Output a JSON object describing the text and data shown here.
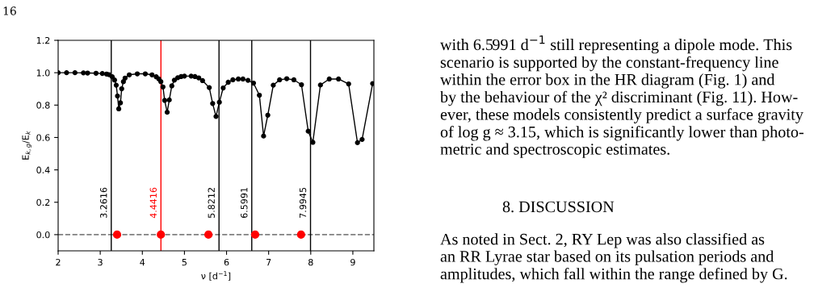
{
  "chart_data": {
    "type": "line",
    "xlabel": "ν [d$^{−1}$]",
    "ylabel": "E$_{k,g}$/E$_{k}$",
    "xlim": [
      2,
      9.5
    ],
    "xticks": [
      2,
      3,
      4,
      5,
      6,
      7,
      8,
      9
    ],
    "ylim": [
      -0.1,
      1.2
    ],
    "yticks": [
      {
        "value": 0,
        "label": "0.0"
      },
      0.2,
      0.4,
      0.6,
      0.8,
      {
        "value": 1,
        "label": "1.0"
      },
      1.2
    ],
    "grid": false,
    "legend": false,
    "series": [
      {
        "color": "#000000",
        "marker": "circle",
        "line_style": "solid",
        "x": [
          2.0,
          2.2,
          2.4,
          2.6,
          2.7,
          2.9,
          3.05,
          3.15,
          3.21,
          3.285,
          3.34,
          3.38,
          3.41,
          3.44,
          3.48,
          3.51,
          3.55,
          3.59,
          3.69,
          3.88,
          4.07,
          4.23,
          4.33,
          4.39,
          4.44,
          4.49,
          4.53,
          4.59,
          4.64,
          4.7,
          4.76,
          4.84,
          4.92,
          5.0,
          5.16,
          5.25,
          5.34,
          5.43,
          5.59,
          5.67,
          5.75,
          5.83,
          5.92,
          6.04,
          6.15,
          6.28,
          6.39,
          6.51,
          6.64,
          6.78,
          6.88,
          6.98,
          7.11,
          7.26,
          7.43,
          7.6,
          7.78,
          7.94,
          8.05,
          8.23,
          8.44,
          8.66,
          8.9,
          9.11,
          9.22,
          9.47
        ],
        "values": [
          1.0,
          1.0,
          1.0,
          0.999,
          0.998,
          0.997,
          0.995,
          0.992,
          0.988,
          0.975,
          0.955,
          0.923,
          0.856,
          0.777,
          0.814,
          0.901,
          0.945,
          0.967,
          0.987,
          0.993,
          0.993,
          0.987,
          0.975,
          0.962,
          0.945,
          0.912,
          0.829,
          0.756,
          0.832,
          0.919,
          0.954,
          0.969,
          0.976,
          0.979,
          0.979,
          0.976,
          0.968,
          0.951,
          0.908,
          0.81,
          0.73,
          0.818,
          0.906,
          0.941,
          0.956,
          0.961,
          0.961,
          0.953,
          0.936,
          0.861,
          0.609,
          0.738,
          0.923,
          0.956,
          0.963,
          0.956,
          0.926,
          0.639,
          0.57,
          0.924,
          0.961,
          0.961,
          0.931,
          0.568,
          0.588,
          0.933
        ]
      },
      {
        "type": "scatter",
        "color": "#ff0000",
        "marker": "circle",
        "x": [
          3.4,
          4.44,
          5.57,
          6.68,
          7.77
        ],
        "values": [
          0,
          0,
          0,
          0,
          0
        ]
      }
    ],
    "ref_lines": [
      {
        "axis": "y",
        "value": 0,
        "color": "#808080",
        "line_style": "dashed"
      },
      {
        "axis": "x",
        "value": 3.2616,
        "label": "3.2616",
        "color": "#000000",
        "line_style": "solid"
      },
      {
        "axis": "x",
        "value": 4.4416,
        "label": "4.4416",
        "color": "#ff0000",
        "line_style": "solid"
      },
      {
        "axis": "x",
        "value": 5.8212,
        "label": "5.8212",
        "color": "#000000",
        "line_style": "solid"
      },
      {
        "axis": "x",
        "value": 6.5991,
        "label": "6.5991",
        "color": "#000000",
        "line_style": "solid"
      },
      {
        "axis": "x",
        "value": 7.9945,
        "label": "7.9945",
        "color": "#000000",
        "line_style": "solid"
      }
    ],
    "annotations": [
      "16",
      "with 6.5991 d$^{−1}$ still representing a dipole mode. This\nscenario is supported by the constant-frequency line\nwithin the error box in the HR diagram (Fig. 1) and\nby the behaviour of the χ² discriminant (Fig. 11). How-\never, these models consistently predict a surface gravity\nof log g ≈ 3.15, which is significantly lower than photo-\nmetric and spectroscopic estimates.",
      "8. DISCUSSION",
      "As noted in Sect. 2, RY Lep was also classified as\nan RR Lyrae star based on its pulsation periods and\namplitudes, which fall within the range defined by G."
    ]
  }
}
